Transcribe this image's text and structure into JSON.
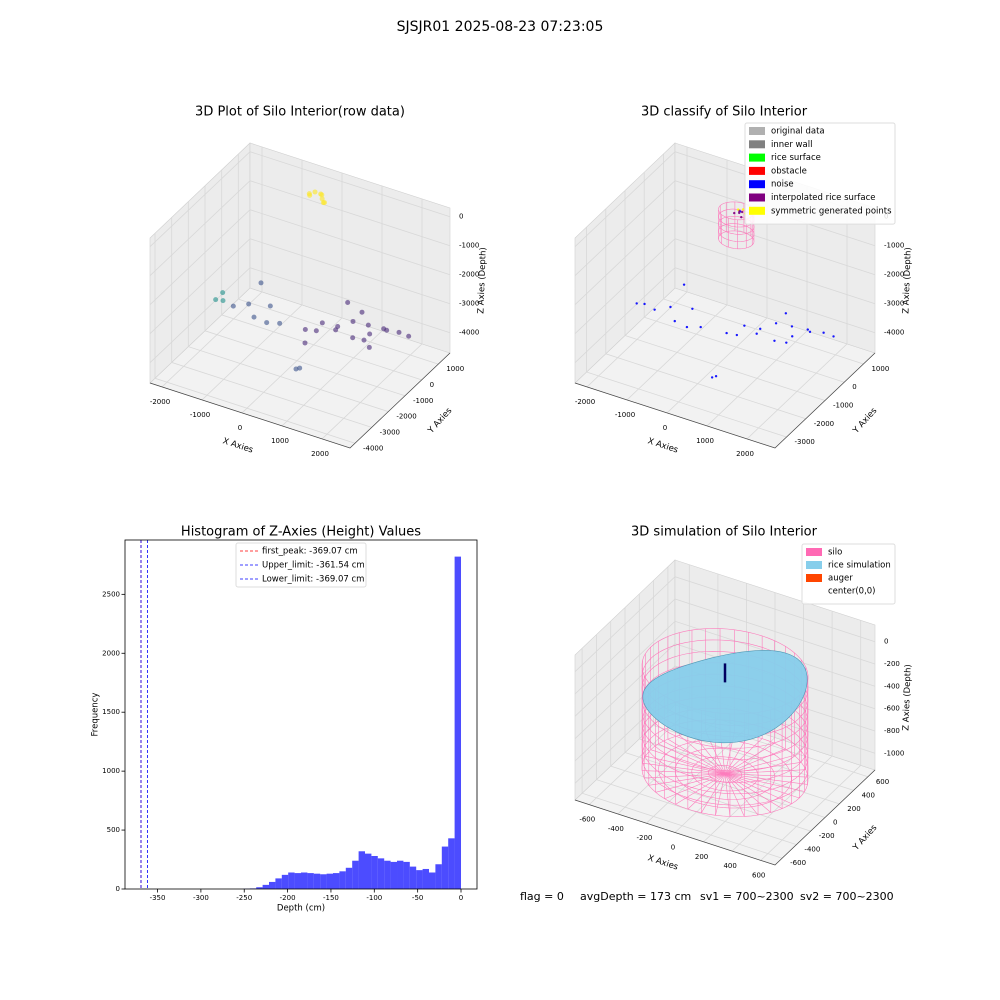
{
  "title": "SJSJR01 2025-08-23 07:23:05",
  "footer": [
    "flag = 0",
    "avgDepth = 173 cm",
    "sv1 = 700~2300",
    "sv2 = 700~2300"
  ],
  "chart_data": [
    {
      "type": "scatter3d",
      "title": "3D Plot of Silo Interior(row data)",
      "xlabel": "X Axies",
      "ylabel": "Y Axies",
      "zlabel": "Z Axies (Depth)",
      "xlim": [
        -2300,
        2700
      ],
      "ylim": [
        -4300,
        1700
      ],
      "zlim": [
        -4700,
        300
      ],
      "xticks": [
        -2000,
        -1000,
        0,
        1000,
        2000
      ],
      "yticks": [
        -4000,
        -3000,
        -2000,
        -1000,
        0,
        1000
      ],
      "zticks": [
        -4000,
        -3000,
        -2000,
        -1000,
        0
      ],
      "series": [
        {
          "color": "#fde725",
          "x": [
            -400,
            -300,
            -200,
            -100,
            0,
            -350,
            -150,
            -50
          ],
          "y": [
            700,
            800,
            900,
            750,
            650,
            600,
            850,
            700
          ],
          "z": [
            -50,
            0,
            -80,
            -120,
            -150,
            -30,
            -60,
            -200
          ]
        },
        {
          "color": "#482878",
          "x": [
            0,
            300,
            600,
            900,
            1200,
            1500,
            1800,
            2000,
            400,
            800,
            1100,
            1400,
            1700,
            1000,
            1300,
            600,
            200,
            1600
          ],
          "y": [
            -500,
            -200,
            0,
            200,
            400,
            600,
            800,
            900,
            -800,
            -600,
            -300,
            0,
            300,
            500,
            -100,
            600,
            -1000,
            -500
          ],
          "z": [
            -3900,
            -3700,
            -3800,
            -3600,
            -3700,
            -3800,
            -3900,
            -4000,
            -3600,
            -3500,
            -3800,
            -3700,
            -3600,
            -3400,
            -3900,
            -3300,
            -4000,
            -3800
          ]
        },
        {
          "color": "#21918c",
          "x": [
            -2200,
            -2100,
            -2150
          ],
          "y": [
            -600,
            -400,
            -300
          ],
          "z": [
            -3800,
            -3900,
            -3700
          ]
        },
        {
          "color": "#3b528b",
          "x": [
            -1800,
            -1500,
            -1200,
            -1000,
            -800,
            -600,
            -1400,
            600,
            650
          ],
          "y": [
            -500,
            -300,
            -700,
            -200,
            -900,
            -600,
            200,
            -2500,
            -2400
          ],
          "z": [
            -3900,
            -3800,
            -3900,
            -3700,
            -3800,
            -3900,
            -3300,
            -3900,
            -3900
          ]
        }
      ]
    },
    {
      "type": "scatter3d",
      "title": "3D classify of Silo Interior",
      "xlabel": "X Axies",
      "ylabel": "Y Axies",
      "zlabel": "Z Axies (Depth)",
      "xlim": [
        -2300,
        2700
      ],
      "ylim": [
        -3600,
        1600
      ],
      "zlim": [
        -4700,
        300
      ],
      "xticks": [
        -2000,
        -1000,
        0,
        1000,
        2000
      ],
      "yticks": [
        -3000,
        -2000,
        -1000,
        0,
        1000
      ],
      "zticks": [
        -4000,
        -3000,
        -2000,
        -1000,
        0
      ],
      "series": [
        {
          "name": "original data",
          "color": "#b0b0b0",
          "x": [],
          "y": [],
          "z": []
        },
        {
          "name": "inner wall",
          "color": "#808080",
          "x": [],
          "y": [],
          "z": []
        },
        {
          "name": "rice surface",
          "color": "#00ff00",
          "x": [],
          "y": [],
          "z": []
        },
        {
          "name": "obstacle",
          "color": "#ff0000",
          "x": [],
          "y": [],
          "z": []
        },
        {
          "name": "noise",
          "color": "#0000ff",
          "x": [
            -2200,
            -2100,
            -1800,
            -1500,
            -1200,
            -1000,
            -800,
            -600,
            -1400,
            600,
            650,
            0,
            300,
            600,
            900,
            1200,
            1500,
            1800,
            2000,
            400,
            800,
            1100,
            1400,
            1700,
            1000,
            1300,
            50
          ],
          "y": [
            -600,
            -400,
            -500,
            -300,
            -700,
            -200,
            -900,
            -600,
            200,
            -2500,
            -2400,
            -500,
            -200,
            0,
            200,
            400,
            600,
            800,
            900,
            -800,
            -600,
            -300,
            0,
            300,
            500,
            -100,
            100
          ],
          "z": [
            -3800,
            -3900,
            -3900,
            -3800,
            -3900,
            -3700,
            -3800,
            -3900,
            -3300,
            -3900,
            -3900,
            -3900,
            -3700,
            -3800,
            -3600,
            -3700,
            -3800,
            -3900,
            -4000,
            -3600,
            -3500,
            -3800,
            -3700,
            -3600,
            -3400,
            -3900,
            -60
          ]
        },
        {
          "name": "interpolated rice surface",
          "color": "#800080",
          "x": [
            -50,
            50,
            150,
            100,
            0
          ],
          "y": [
            0,
            50,
            -50,
            100,
            150
          ],
          "z": [
            -100,
            -80,
            -120,
            -60,
            -90
          ]
        },
        {
          "name": "symmetric generated points",
          "color": "#ffff00",
          "x": [
            0,
            100,
            200
          ],
          "y": [
            100,
            150,
            50
          ],
          "z": [
            -20,
            0,
            -40
          ]
        }
      ]
    },
    {
      "type": "histogram",
      "title": "Histogram of Z-Axies (Height) Values",
      "xlabel": "Depth (cm)",
      "ylabel": "Frequency",
      "color": "#0000ff",
      "alpha": 0.7,
      "bins": [
        -369.07,
        -361.69,
        -354.31,
        -346.93,
        -339.54,
        -332.16,
        -324.78,
        -317.4,
        -310.02,
        -302.64,
        -295.26,
        -287.87,
        -280.49,
        -273.11,
        -265.73,
        -258.35,
        -250.97,
        -243.59,
        -236.2,
        -228.82,
        -221.44,
        -214.06,
        -206.68,
        -199.3,
        -191.92,
        -184.54,
        -177.15,
        -169.77,
        -162.39,
        -155.01,
        -147.63,
        -140.25,
        -132.87,
        -125.48,
        -118.1,
        -110.72,
        -103.34,
        -95.96,
        -88.58,
        -81.2,
        -73.81,
        -66.43,
        -59.05,
        -51.67,
        -44.29,
        -36.91,
        -29.53,
        -22.14,
        -14.76,
        -7.38,
        0.0
      ],
      "counts": [
        1,
        0,
        0,
        0,
        0,
        0,
        0,
        0,
        0,
        0,
        0,
        0,
        0,
        0,
        0,
        0,
        2,
        5,
        15,
        35,
        60,
        90,
        120,
        140,
        135,
        140,
        135,
        130,
        125,
        130,
        135,
        150,
        180,
        240,
        320,
        300,
        280,
        260,
        240,
        230,
        240,
        230,
        190,
        160,
        170,
        140,
        210,
        360,
        430,
        2820
      ],
      "xlim": [
        -387.52,
        18.45
      ],
      "ylim": [
        0,
        2961
      ],
      "xticks": [
        -350,
        -300,
        -250,
        -200,
        -150,
        -100,
        -50,
        0
      ],
      "yticks": [
        0,
        500,
        1000,
        1500,
        2000,
        2500
      ],
      "vlines": [
        {
          "label": "first_peak: -369.07 cm",
          "value": -369.07,
          "color": "#ff0000"
        },
        {
          "label": "Upper_limit: -361.54 cm",
          "value": -361.54,
          "color": "#0000ff"
        },
        {
          "label": "Lower_limit: -369.07 cm",
          "value": -369.07,
          "color": "#0000ff"
        }
      ]
    },
    {
      "type": "surface3d",
      "title": "3D simulation of Silo Interior",
      "xlabel": "X Axies",
      "ylabel": "Y Axies",
      "zlabel": "Z Axies (Depth)",
      "xlim": [
        -700,
        700
      ],
      "ylim": [
        -700,
        700
      ],
      "zlim": [
        -1150,
        150
      ],
      "xticks": [
        -600,
        -400,
        -200,
        0,
        200,
        400,
        600
      ],
      "yticks": [
        -600,
        -400,
        -200,
        0,
        200,
        400,
        600
      ],
      "zticks": [
        -1000,
        -800,
        -600,
        -400,
        -200,
        0
      ],
      "series": [
        {
          "name": "silo",
          "color": "#ff69b4"
        },
        {
          "name": "rice simulation",
          "color": "#87ceeb"
        },
        {
          "name": "auger",
          "color": "#ff4500"
        },
        {
          "name": "center(0,0)",
          "color": "#ffffff"
        }
      ]
    }
  ]
}
